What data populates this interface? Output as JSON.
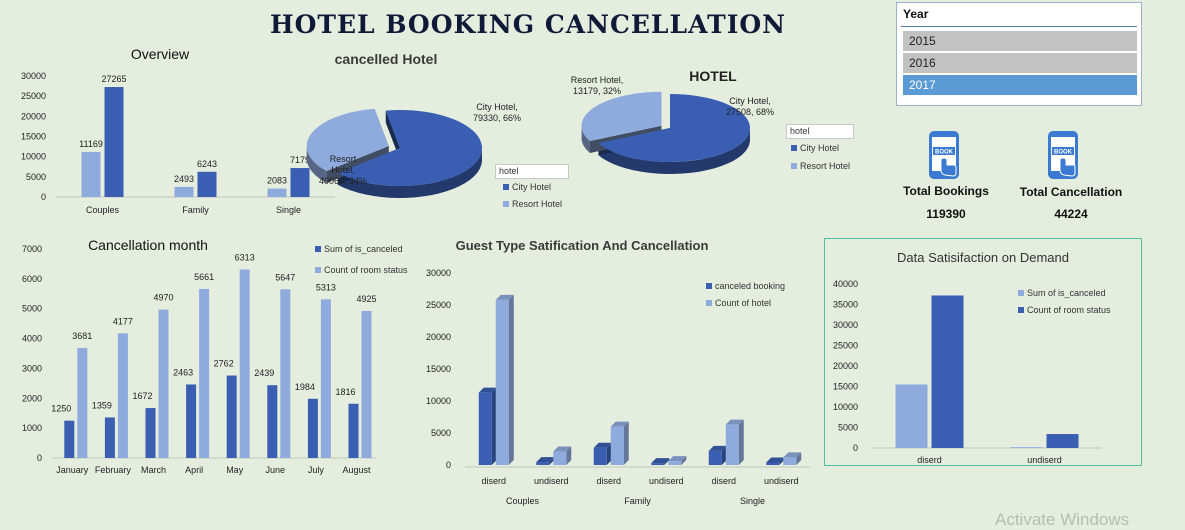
{
  "page_title": "HOTEL BOOKING CANCELLATION",
  "colors": {
    "light": "#8faadc",
    "dark": "#3a5fb2",
    "background": "#e4edde",
    "selected": "#5b9bd5"
  },
  "slicer": {
    "title": "Year",
    "items": [
      "2015",
      "2016",
      "2017"
    ],
    "selected": "2017"
  },
  "kpis": {
    "bookings": {
      "label": "Total Bookings",
      "value": "119390",
      "icon": "booking-phone-icon",
      "badge": "BOOK"
    },
    "cancellations": {
      "label": "Total Cancellation",
      "value": "44224",
      "icon": "booking-phone-icon",
      "badge": "BOOK"
    }
  },
  "watermark": "Activate Windows",
  "chart_data": [
    {
      "id": "overview",
      "type": "bar",
      "title": "Overview",
      "categories": [
        "Couples",
        "Family",
        "Single"
      ],
      "series": [
        {
          "values": [
            11169,
            2493,
            2083
          ]
        },
        {
          "values": [
            27265,
            6243,
            7179
          ]
        }
      ],
      "ylim": [
        0,
        30000
      ],
      "yticks": [
        0,
        5000,
        10000,
        15000,
        20000,
        25000,
        30000
      ],
      "yticks_text": [
        "0",
        "5000",
        "10000",
        "15000",
        "20000",
        "25000",
        "30000"
      ]
    },
    {
      "id": "cancelled_hotel",
      "type": "pie",
      "title": "cancelled Hotel",
      "slices": [
        {
          "name": "City Hotel",
          "value": 79330,
          "label_lines": [
            "City Hotel,",
            "79330, 66%"
          ]
        },
        {
          "name": "Resort Hotel",
          "value": 40060,
          "label_lines": [
            "Resort",
            "Hotel,",
            "40060, 34%"
          ]
        }
      ],
      "filter_label": "hotel",
      "legend": [
        "City Hotel",
        "Resort Hotel"
      ]
    },
    {
      "id": "hotel",
      "type": "pie",
      "title": "HOTEL",
      "slices": [
        {
          "name": "City Hotel",
          "value": 27508,
          "label_lines": [
            "City Hotel,",
            "27508, 68%"
          ]
        },
        {
          "name": "Resort Hotel",
          "value": 13179,
          "label_lines": [
            "Resort Hotel,",
            "13179, 32%"
          ]
        }
      ],
      "filter_label": "hotel",
      "legend": [
        "City Hotel",
        "Resort Hotel"
      ]
    },
    {
      "id": "cancellation_month",
      "type": "bar",
      "title": "Cancellation month",
      "categories": [
        "January",
        "February",
        "March",
        "April",
        "May",
        "June",
        "July",
        "August"
      ],
      "series": [
        {
          "name": "Sum of is_canceled",
          "values": [
            1250,
            1359,
            1672,
            2463,
            2762,
            2439,
            1984,
            1816
          ]
        },
        {
          "name": "Count of room status",
          "values": [
            3681,
            4177,
            4970,
            5661,
            6313,
            5647,
            5313,
            4925
          ]
        }
      ],
      "ylim": [
        0,
        7000
      ],
      "yticks": [
        0,
        1000,
        2000,
        3000,
        4000,
        5000,
        6000,
        7000
      ],
      "yticks_text": [
        "0",
        "1000",
        "2000",
        "3000",
        "4000",
        "5000",
        "6000",
        "7000"
      ]
    },
    {
      "id": "guest_type",
      "type": "bar",
      "title": "Guest Type  Satification And Cancellation",
      "categories": [
        "diserd",
        "undiserd",
        "diserd",
        "undiserd",
        "diserd",
        "undiserd"
      ],
      "groups": [
        "Couples",
        "Family",
        "Single"
      ],
      "series": [
        {
          "name": "canceled booking",
          "values": [
            11300,
            450,
            2700,
            300,
            2200,
            400
          ]
        },
        {
          "name": "Count of hotel",
          "values": [
            25800,
            2100,
            6000,
            600,
            6300,
            1200
          ]
        }
      ],
      "ylim": [
        0,
        30000
      ],
      "yticks": [
        0,
        5000,
        10000,
        15000,
        20000,
        25000,
        30000
      ],
      "yticks_text": [
        "0",
        "5000",
        "10000",
        "15000",
        "20000",
        "25000",
        "30000"
      ]
    },
    {
      "id": "satisfaction_demand",
      "type": "bar",
      "title": "Data  Satisifaction on Demand",
      "categories": [
        "diserd",
        "undiserd"
      ],
      "series": [
        {
          "name": "Sum of is_canceled",
          "values": [
            15500,
            200
          ]
        },
        {
          "name": "Count of room status",
          "values": [
            37200,
            3400
          ]
        }
      ],
      "ylim": [
        0,
        40000
      ],
      "yticks": [
        0,
        5000,
        10000,
        15000,
        20000,
        25000,
        30000,
        35000,
        40000
      ],
      "yticks_text": [
        "0",
        "5000",
        "10000",
        "15000",
        "20000",
        "25000",
        "30000",
        "35000",
        "40000"
      ]
    }
  ]
}
